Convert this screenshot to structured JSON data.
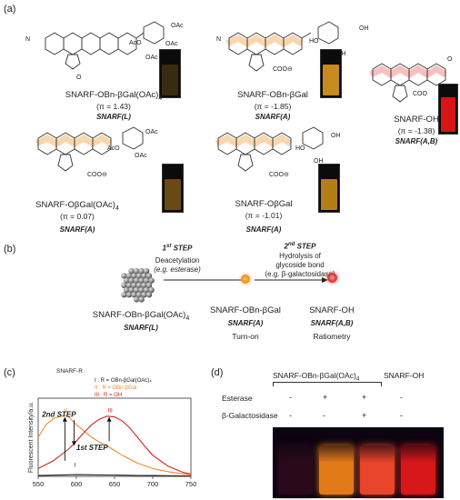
{
  "panel_a": {
    "label": "(a)",
    "compounds": [
      {
        "name": "SNARF-OBn-βGal(OAc)",
        "sub": "4",
        "pi": "(π = 1.43)",
        "state": "SNARF(L)",
        "vial_color": "#3a2a10"
      },
      {
        "name": "SNARF-OBn-βGal",
        "sub": "",
        "pi": "(π = -1.85)",
        "state": "SNARF(A)",
        "vial_color": "#c78a1e"
      },
      {
        "name": "SNARF-OH",
        "sub": "",
        "pi": "(π = -1.38)",
        "state": "SNARF(A,B)",
        "vial_color": "#d81414"
      },
      {
        "name": "SNARF-OβGal(OAc)",
        "sub": "4",
        "pi": "(π = 0.07)",
        "state": "SNARF(A)",
        "vial_color": "#6a4a14"
      },
      {
        "name": "SNARF-OβGal",
        "sub": "",
        "pi": "(π = -1.01)",
        "state": "SNARF(A)",
        "vial_color": "#b37d1a"
      }
    ],
    "structure_labels": {
      "n_label": "N",
      "o_label": "O",
      "oac": "OAc",
      "aco": "AcO",
      "oh": "OH",
      "ho": "HO",
      "coo": "COO",
      "minus": "⊖",
      "plus": "⊕"
    }
  },
  "panel_b": {
    "label": "(b)",
    "step1_title": "1",
    "step1_sup": "st",
    "step1_word": "STEP",
    "step1_desc_line1": "Deacetylation",
    "step1_desc_line2": "(e.g. esterase)",
    "step2_title": "2",
    "step2_sup": "nd",
    "step2_word": "STEP",
    "step2_desc_line1": "Hydrolysis of",
    "step2_desc_line2": "glycoside bond",
    "step2_desc_line3": "(e.g. β-galactosidase)",
    "left_name": "SNARF-OBn-βGal(OAc)",
    "left_sub": "4",
    "left_state": "SNARF(L)",
    "mid_name": "SNARF-OBn-βGal",
    "mid_state": "SNARF(A)",
    "mid_caption": "Turn-on",
    "right_name": "SNARF-OH",
    "right_state": "SNARF(A,B)",
    "right_caption": "Ratiometry"
  },
  "panel_c": {
    "label": "(c)",
    "legend_title": "SNARF-R",
    "legend": [
      {
        "roman": "I",
        "text": ": R = OBn-βGal(OAc)₄",
        "color": "#222222"
      },
      {
        "roman": "II",
        "text": ": R = OBn-βGal",
        "color": "#f08a2a"
      },
      {
        "roman": "III",
        "text": ": R = OH",
        "color": "#d62020"
      }
    ],
    "annot_step2": "2nd STEP",
    "annot_step1": "1st STEP",
    "curve_labels": [
      "I",
      "II",
      "III"
    ],
    "ylabel": "Fluorescent Intensity/a.u.",
    "xlabel": ""
  },
  "chart_data": {
    "type": "line",
    "title": "",
    "xlabel": "",
    "ylabel": "Fluorescent Intensity/a.u.",
    "xlim": [
      550,
      750
    ],
    "ylim": [
      0,
      1
    ],
    "xticks": [
      550,
      600,
      650,
      700,
      750
    ],
    "grid": false,
    "series": [
      {
        "name": "I",
        "color": "#222222",
        "x": [
          550,
          570,
          590,
          600,
          620,
          640,
          660,
          680,
          700,
          720,
          740,
          750
        ],
        "y": [
          0.01,
          0.015,
          0.02,
          0.022,
          0.02,
          0.018,
          0.015,
          0.012,
          0.01,
          0.008,
          0.005,
          0.004
        ]
      },
      {
        "name": "II",
        "color": "#f08a2a",
        "x": [
          550,
          560,
          570,
          580,
          585,
          590,
          600,
          610,
          620,
          630,
          640,
          650,
          660,
          680,
          700,
          720,
          740,
          750
        ],
        "y": [
          0.5,
          0.66,
          0.74,
          0.77,
          0.78,
          0.76,
          0.66,
          0.58,
          0.5,
          0.44,
          0.39,
          0.33,
          0.27,
          0.17,
          0.1,
          0.06,
          0.03,
          0.02
        ]
      },
      {
        "name": "III",
        "color": "#d62020",
        "x": [
          550,
          570,
          590,
          600,
          610,
          620,
          630,
          640,
          650,
          660,
          670,
          680,
          690,
          700,
          720,
          740,
          750
        ],
        "y": [
          0.1,
          0.2,
          0.35,
          0.45,
          0.56,
          0.66,
          0.73,
          0.77,
          0.76,
          0.71,
          0.62,
          0.5,
          0.38,
          0.27,
          0.13,
          0.05,
          0.03
        ]
      }
    ]
  },
  "panel_d": {
    "label": "(d)",
    "group1_header": "SNARF-OBn-βGal(OAc)",
    "group1_sub": "4",
    "group2_header": "SNARF-OH",
    "row1_label": "Esterase",
    "row2_label": "β-Galactosidase",
    "row1_values": [
      "-",
      "+",
      "+",
      "-"
    ],
    "row2_values": [
      "-",
      "-",
      "+",
      "-"
    ],
    "vial_colors": [
      "#2a0a1a",
      "#e37a18",
      "#e8452a",
      "#d81818"
    ]
  }
}
